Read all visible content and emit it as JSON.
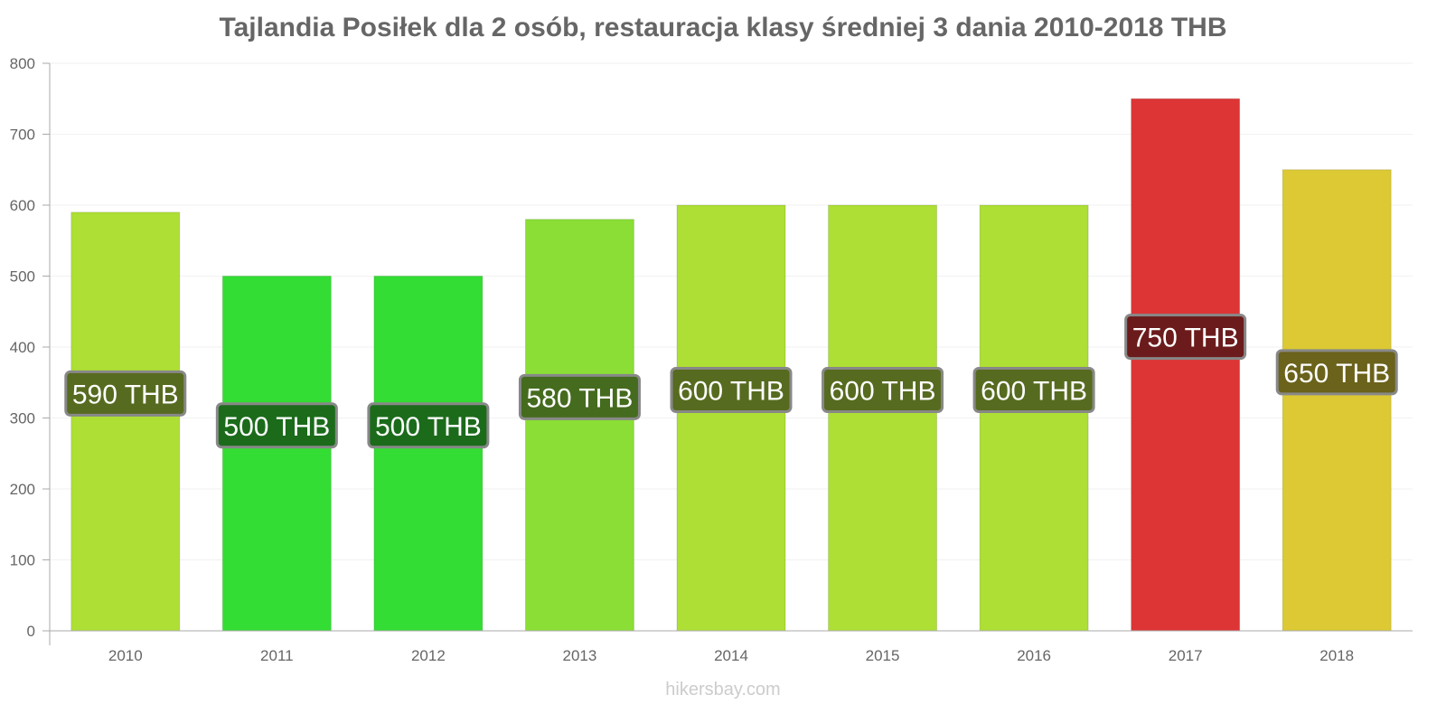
{
  "chart_data": {
    "type": "bar",
    "title": "Tajlandia Posiłek dla 2 osób, restauracja klasy średniej 3 dania 2010-2018 THB",
    "xlabel": "",
    "ylabel": "",
    "categories": [
      "2010",
      "2011",
      "2012",
      "2013",
      "2014",
      "2015",
      "2016",
      "2017",
      "2018"
    ],
    "values": [
      590,
      500,
      500,
      580,
      600,
      600,
      600,
      750,
      650
    ],
    "data_labels": [
      "590 THB",
      "500 THB",
      "500 THB",
      "580 THB",
      "600 THB",
      "600 THB",
      "600 THB",
      "750 THB",
      "650 THB"
    ],
    "colors": [
      "#addf34",
      "#33dd33",
      "#33dd33",
      "#8ade35",
      "#addf34",
      "#addf34",
      "#addf34",
      "#dd3535",
      "#dcc933"
    ],
    "label_colors": [
      "#566b1f",
      "#1b6b1b",
      "#1b6b1b",
      "#456b1f",
      "#566b1f",
      "#566b1f",
      "#566b1f",
      "#6b1b1b",
      "#6b621b"
    ],
    "yticks": [
      0,
      100,
      200,
      300,
      400,
      500,
      600,
      700,
      800
    ],
    "ylim": [
      0,
      800
    ],
    "grid": true,
    "legend": "none"
  },
  "footer": "hikersbay.com"
}
